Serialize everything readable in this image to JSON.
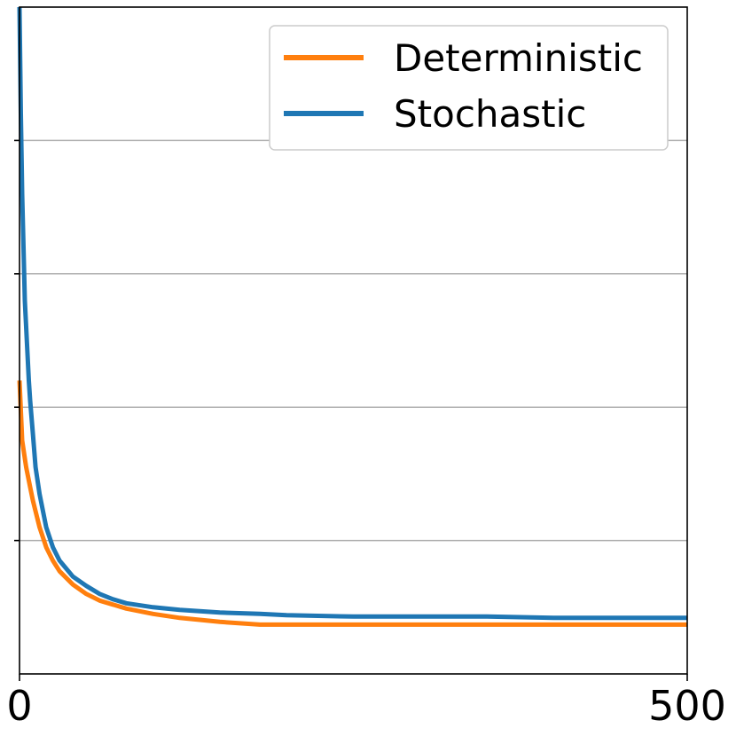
{
  "chart_data": {
    "type": "line",
    "title": "",
    "xlabel": "",
    "ylabel": "",
    "xlim": [
      0,
      500
    ],
    "ylim": [
      0,
      5
    ],
    "xticks": [
      0,
      500
    ],
    "xtick_labels": [
      "0",
      "500"
    ],
    "yticks": [
      1,
      2,
      3,
      4
    ],
    "grid": "horizontal",
    "legend_position": "top-right",
    "series": [
      {
        "name": "Deterministic",
        "color": "#ff7f0e",
        "x": [
          0,
          2,
          5,
          8,
          10,
          15,
          20,
          25,
          30,
          40,
          50,
          60,
          70,
          80,
          100,
          120,
          150,
          180,
          200,
          250,
          300,
          350,
          400,
          450,
          500
        ],
        "y": [
          2.2,
          1.75,
          1.55,
          1.4,
          1.3,
          1.1,
          0.95,
          0.85,
          0.77,
          0.67,
          0.6,
          0.55,
          0.52,
          0.49,
          0.45,
          0.42,
          0.39,
          0.37,
          0.37,
          0.37,
          0.37,
          0.37,
          0.37,
          0.37,
          0.37
        ]
      },
      {
        "name": "Stochastic",
        "color": "#1f77b4",
        "x": [
          0,
          1,
          2,
          3,
          4,
          5,
          6,
          7,
          8,
          10,
          12,
          15,
          20,
          25,
          30,
          40,
          50,
          60,
          70,
          80,
          100,
          120,
          150,
          180,
          200,
          250,
          300,
          350,
          400,
          450,
          500
        ],
        "y": [
          5.0,
          4.2,
          3.6,
          3.2,
          2.8,
          2.6,
          2.4,
          2.2,
          2.05,
          1.8,
          1.55,
          1.35,
          1.1,
          0.95,
          0.85,
          0.73,
          0.66,
          0.6,
          0.56,
          0.53,
          0.5,
          0.48,
          0.46,
          0.45,
          0.44,
          0.43,
          0.43,
          0.43,
          0.42,
          0.42,
          0.42
        ]
      }
    ]
  }
}
